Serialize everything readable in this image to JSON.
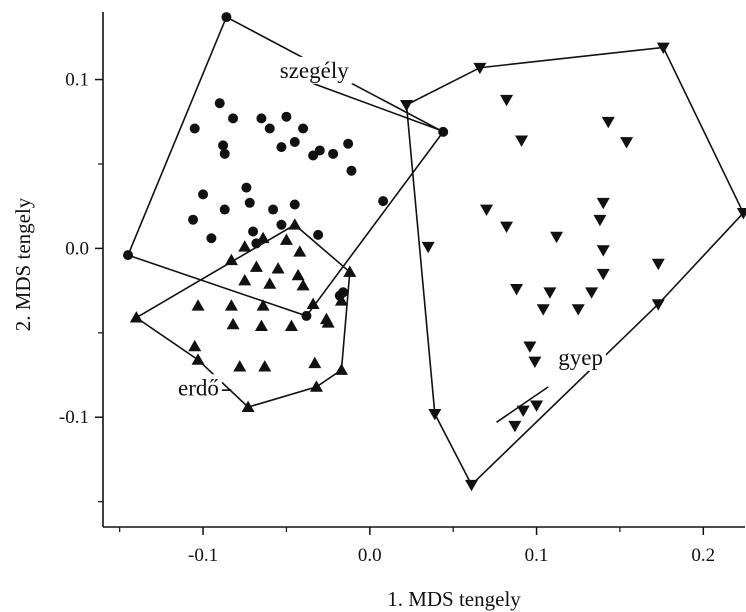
{
  "chart_data": {
    "type": "scatter",
    "xlabel": "1. MDS tengely",
    "ylabel": "2. MDS tengely",
    "xlim": [
      -0.16,
      0.225
    ],
    "ylim": [
      -0.165,
      0.14
    ],
    "xticks": [
      -0.1,
      0.0,
      0.1,
      0.2
    ],
    "xtick_labels": [
      "-0.1",
      "0.0",
      "0.1",
      "0.2"
    ],
    "yticks": [
      -0.1,
      0.0,
      0.1
    ],
    "ytick_labels": [
      "-0.1",
      "0.0",
      "0.1"
    ],
    "grid": false,
    "series": [
      {
        "name": "szegély",
        "marker": "circle",
        "points": [
          [
            -0.086,
            0.137
          ],
          [
            0.044,
            0.069
          ],
          [
            -0.038,
            -0.04
          ],
          [
            -0.145,
            -0.004
          ],
          [
            -0.105,
            0.071
          ],
          [
            -0.09,
            0.086
          ],
          [
            -0.082,
            0.077
          ],
          [
            -0.065,
            0.077
          ],
          [
            -0.05,
            0.078
          ],
          [
            -0.088,
            0.061
          ],
          [
            -0.06,
            0.071
          ],
          [
            -0.087,
            0.056
          ],
          [
            -0.04,
            0.071
          ],
          [
            -0.03,
            0.058
          ],
          [
            -0.053,
            0.06
          ],
          [
            -0.045,
            0.063
          ],
          [
            -0.013,
            0.062
          ],
          [
            -0.011,
            0.046
          ],
          [
            -0.022,
            0.056
          ],
          [
            -0.034,
            0.055
          ],
          [
            -0.1,
            0.032
          ],
          [
            -0.074,
            0.036
          ],
          [
            -0.072,
            0.027
          ],
          [
            -0.058,
            0.023
          ],
          [
            -0.045,
            0.026
          ],
          [
            0.008,
            0.028
          ],
          [
            -0.106,
            0.017
          ],
          [
            -0.087,
            0.023
          ],
          [
            -0.07,
            0.01
          ],
          [
            -0.095,
            0.006
          ],
          [
            -0.068,
            0.003
          ],
          [
            -0.053,
            0.014
          ],
          [
            -0.031,
            0.008
          ],
          [
            -0.016,
            -0.026
          ],
          [
            -0.018,
            -0.028
          ]
        ],
        "hull": [
          [
            -0.086,
            0.137
          ],
          [
            0.044,
            0.069
          ],
          [
            -0.038,
            -0.04
          ],
          [
            -0.145,
            -0.004
          ]
        ]
      },
      {
        "name": "erdő",
        "marker": "triangle-up",
        "points": [
          [
            -0.045,
            0.014
          ],
          [
            -0.012,
            -0.014
          ],
          [
            -0.017,
            -0.072
          ],
          [
            -0.032,
            -0.082
          ],
          [
            -0.073,
            -0.094
          ],
          [
            -0.14,
            -0.041
          ],
          [
            -0.075,
            0.001
          ],
          [
            -0.064,
            0.006
          ],
          [
            -0.05,
            0.005
          ],
          [
            -0.042,
            -0.002
          ],
          [
            -0.083,
            -0.007
          ],
          [
            -0.068,
            -0.011
          ],
          [
            -0.055,
            -0.012
          ],
          [
            -0.043,
            -0.016
          ],
          [
            -0.075,
            -0.019
          ],
          [
            -0.06,
            -0.021
          ],
          [
            -0.04,
            -0.022
          ],
          [
            -0.103,
            -0.034
          ],
          [
            -0.083,
            -0.034
          ],
          [
            -0.064,
            -0.034
          ],
          [
            -0.034,
            -0.033
          ],
          [
            -0.082,
            -0.045
          ],
          [
            -0.065,
            -0.046
          ],
          [
            -0.047,
            -0.046
          ],
          [
            -0.026,
            -0.042
          ],
          [
            -0.105,
            -0.058
          ],
          [
            -0.103,
            -0.066
          ],
          [
            -0.078,
            -0.07
          ],
          [
            -0.063,
            -0.07
          ],
          [
            -0.033,
            -0.068
          ],
          [
            -0.017,
            -0.031
          ],
          [
            -0.025,
            -0.044
          ]
        ],
        "hull": [
          [
            -0.045,
            0.014
          ],
          [
            -0.012,
            -0.014
          ],
          [
            -0.017,
            -0.072
          ],
          [
            -0.032,
            -0.082
          ],
          [
            -0.073,
            -0.094
          ],
          [
            -0.103,
            -0.066
          ],
          [
            -0.14,
            -0.041
          ]
        ]
      },
      {
        "name": "gyep",
        "marker": "triangle-down",
        "points": [
          [
            0.176,
            0.119
          ],
          [
            0.224,
            0.021
          ],
          [
            0.173,
            -0.033
          ],
          [
            0.061,
            -0.14
          ],
          [
            0.039,
            -0.098
          ],
          [
            0.022,
            0.085
          ],
          [
            0.066,
            0.107
          ],
          [
            0.082,
            0.088
          ],
          [
            0.143,
            0.075
          ],
          [
            0.091,
            0.064
          ],
          [
            0.154,
            0.063
          ],
          [
            0.07,
            0.023
          ],
          [
            0.14,
            0.027
          ],
          [
            0.082,
            0.013
          ],
          [
            0.138,
            0.017
          ],
          [
            0.112,
            0.007
          ],
          [
            0.035,
            0.001
          ],
          [
            0.14,
            -0.001
          ],
          [
            0.173,
            -0.009
          ],
          [
            0.14,
            -0.015
          ],
          [
            0.088,
            -0.024
          ],
          [
            0.108,
            -0.026
          ],
          [
            0.133,
            -0.026
          ],
          [
            0.104,
            -0.036
          ],
          [
            0.125,
            -0.036
          ],
          [
            0.096,
            -0.058
          ],
          [
            0.099,
            -0.067
          ],
          [
            0.1,
            -0.093
          ],
          [
            0.092,
            -0.096
          ],
          [
            0.087,
            -0.105
          ]
        ],
        "hull": [
          [
            0.176,
            0.119
          ],
          [
            0.224,
            0.021
          ],
          [
            0.173,
            -0.033
          ],
          [
            0.061,
            -0.14
          ],
          [
            0.039,
            -0.098
          ],
          [
            0.022,
            0.085
          ],
          [
            0.066,
            0.107
          ]
        ]
      }
    ],
    "annotations": [
      {
        "text": "szegély",
        "x": -0.054,
        "y": 0.101,
        "arrow_to": [
          0.045,
          0.069
        ],
        "line_from": [
          -0.035,
          0.098
        ]
      },
      {
        "text": "erdő",
        "x": -0.115,
        "y": -0.087,
        "line_from": [
          -0.093,
          -0.084
        ],
        "arrow_to": [
          -0.083,
          -0.084
        ]
      },
      {
        "text": "gyep",
        "x": 0.113,
        "y": -0.069,
        "line_from": [
          0.107,
          -0.082
        ],
        "arrow_to": [
          0.076,
          -0.103
        ]
      }
    ]
  }
}
